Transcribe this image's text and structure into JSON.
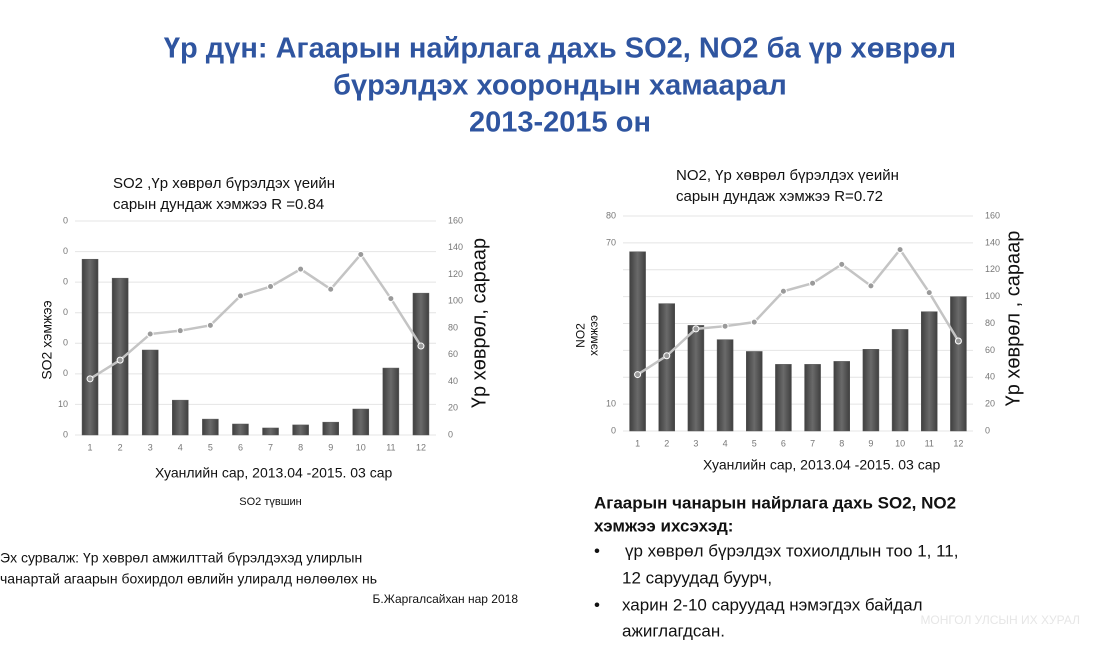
{
  "title": [
    "Үр дүн: Агаарын найрлага дахь SO2, NO2  ба үр хөврөл",
    "бүрэлдэх хоорондын хамаарал",
    "2013-2015 он"
  ],
  "source": [
    "Эх сурвалж: Үр хөврөл амжилттай бүрэлдэхэд улирлын",
    "чанартай агаарын бохирдол  өвлийн улиралд нөлөөлөх нь",
    "Б.Жаргалсайхан нар 2018"
  ],
  "conclusion": {
    "heading": [
      "Агаарын чанарын найрлага дахь  SO2, NO2",
      "хэмжээ ихсэхэд:"
    ],
    "bullets": [
      [
        "үр хөврөл бүрэлдэх тохиолдлын тоо 1, 11,",
        "12 саруудад буурч,"
      ],
      [
        "харин 2-10 саруудад нэмэгдэх байдал",
        "ажиглагдсан."
      ]
    ]
  },
  "watermark": "МОНГОЛ УЛСЫН ИХ ХУРАЛ",
  "chart_data": [
    {
      "type": "combo",
      "title": [
        "SO2 ,Үр хөврөл бүрэлдэх үеийн",
        "сарын дундаж хэмжээ  R =0.84"
      ],
      "x_label": "Хуанлийн сар, 2013.04 -2015. 03 сар",
      "caption": "SO2 түвшин",
      "y_label": [
        "SO2 хэмжээ"
      ],
      "y2_label": "Үр хөврөл, сараар",
      "categories": [
        "1",
        "2",
        "3",
        "4",
        "5",
        "6",
        "7",
        "8",
        "9",
        "10",
        "11",
        "12"
      ],
      "ylim": [
        0,
        70
      ],
      "yticks": [
        0,
        10,
        {
          "value": 20,
          "label": "0"
        },
        {
          "value": 30,
          "label": "0"
        },
        {
          "value": 40,
          "label": "0"
        },
        {
          "value": 50,
          "label": "0"
        },
        {
          "value": 60,
          "label": "0"
        },
        {
          "value": 70,
          "label": "0"
        }
      ],
      "y2lim": [
        0,
        160
      ],
      "y2ticks": [
        0,
        20,
        40,
        60,
        80,
        100,
        120,
        140,
        160
      ],
      "grid": "y",
      "series": [
        {
          "type": "bar",
          "color": "#595959",
          "values": [
            57.5,
            51.3,
            27.8,
            11.4,
            5.2,
            3.6,
            2.3,
            3.3,
            4.2,
            8.5,
            21.9,
            46.4
          ]
        },
        {
          "type": "line",
          "axis": "y2",
          "color": "#c4c4c4",
          "values": [
            42,
            56,
            75.5,
            78,
            82,
            104,
            111,
            124,
            109,
            135,
            102,
            66.5
          ]
        }
      ]
    },
    {
      "type": "combo",
      "title": [
        "NO2, Үр хөврөл бүрэлдэх үеийн",
        " сарын дундаж хэмжээ R=0.72"
      ],
      "x_label": "Хуанлийн сар, 2013.04 -2015. 03 сар",
      "y_label": [
        "NO2",
        "хэмжээ"
      ],
      "y2_label": "Үр хөврөл , сараар",
      "categories": [
        "1",
        "2",
        "3",
        "4",
        "5",
        "6",
        "7",
        "8",
        "9",
        "10",
        "11",
        "12"
      ],
      "ylim": [
        0,
        80
      ],
      "yticks": [
        0,
        10,
        70,
        80
      ],
      "y2lim": [
        0,
        160
      ],
      "y2ticks": [
        0,
        20,
        40,
        60,
        80,
        100,
        120,
        140,
        160
      ],
      "grid": "y2",
      "series": [
        {
          "type": "bar",
          "color": "#595959",
          "values": [
            66.7,
            47.4,
            39.3,
            34,
            29.6,
            24.8,
            24.8,
            25.9,
            30.4,
            37.8,
            44.4,
            50
          ]
        },
        {
          "type": "line",
          "axis": "y2",
          "color": "#c4c4c4",
          "values": [
            42,
            56,
            76,
            78,
            81,
            104,
            110,
            124,
            108,
            135,
            103,
            67
          ]
        }
      ]
    }
  ]
}
